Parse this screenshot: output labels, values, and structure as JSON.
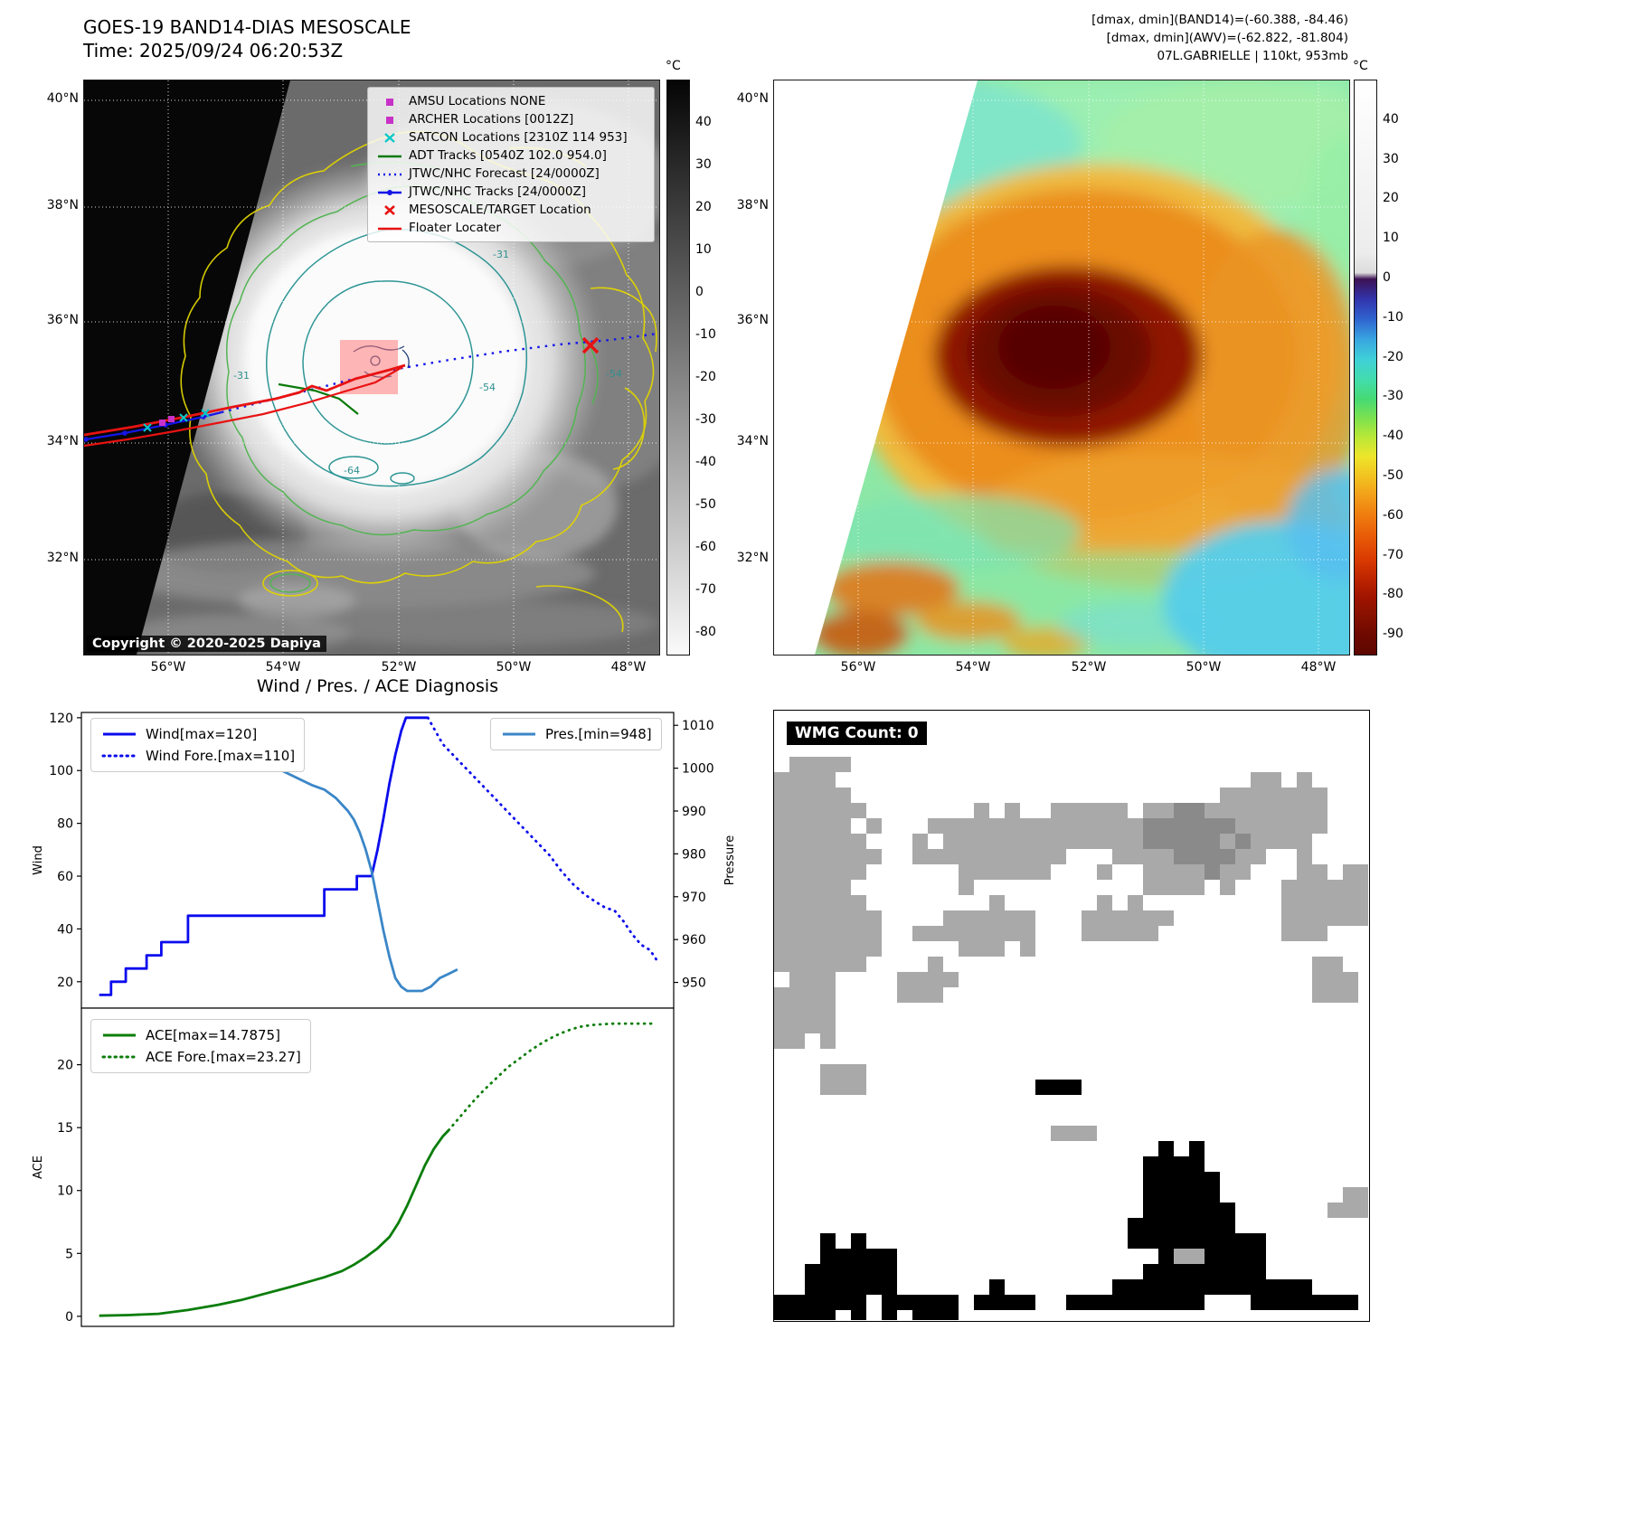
{
  "band14": {
    "title": "GOES-19 BAND14-DIAS MESOSCALE",
    "time": "Time: 2025/09/24 06:20:53Z",
    "copyright": "Copyright © 2020-2025 Dapiya",
    "lat_ticks": [
      "40°N",
      "38°N",
      "36°N",
      "34°N",
      "32°N"
    ],
    "lon_ticks": [
      "56°W",
      "54°W",
      "52°W",
      "50°W",
      "48°W"
    ],
    "contour_labels": [
      "-31",
      "-54",
      "-64",
      "-54",
      "-31"
    ],
    "colorbar": {
      "unit": "°C",
      "ticks": [
        40,
        30,
        20,
        10,
        0,
        -10,
        -20,
        -30,
        -40,
        -50,
        -60,
        -70,
        -80
      ]
    },
    "legend": [
      {
        "label": "AMSU Locations NONE",
        "marker": "square",
        "color": "#c832c8"
      },
      {
        "label": "ARCHER Locations [0012Z]",
        "marker": "square",
        "color": "#c832c8"
      },
      {
        "label": "SATCON Locations [2310Z 114 953]",
        "marker": "x",
        "color": "#00c8c8"
      },
      {
        "label": "ADT Tracks [0540Z 102.0 954.0]",
        "marker": "line",
        "color": "#0a7a0a"
      },
      {
        "label": "JTWC/NHC Forecast [24/0000Z]",
        "marker": "dotted-line",
        "color": "#1515e8"
      },
      {
        "label": "JTWC/NHC Tracks [24/0000Z]",
        "marker": "line-dot",
        "color": "#1515e8"
      },
      {
        "label": "MESOSCALE/TARGET Location",
        "marker": "x",
        "color": "#e81212"
      },
      {
        "label": "Floater Locater",
        "marker": "line",
        "color": "#e81212"
      }
    ]
  },
  "awv": {
    "header1": "[dmax, dmin](BAND14)=(-60.388, -84.46)",
    "header2": "[dmax, dmin](AWV)=(-62.822, -81.804)",
    "header3": "07L.GABRIELLE | 110kt, 953mb",
    "lat_ticks": [
      "40°N",
      "38°N",
      "36°N",
      "34°N",
      "32°N"
    ],
    "lon_ticks": [
      "56°W",
      "54°W",
      "52°W",
      "50°W",
      "48°W"
    ],
    "colorbar": {
      "unit": "°C",
      "ticks": [
        40,
        30,
        20,
        10,
        0,
        -10,
        -20,
        -30,
        -40,
        -50,
        -60,
        -70,
        -80,
        -90
      ]
    }
  },
  "diagnosis": {
    "title": "Wind / Pres. / ACE Diagnosis"
  },
  "wmg": {
    "label": "WMG Count: 0"
  },
  "chart_data": [
    {
      "type": "line",
      "title": "Wind / Pres. / ACE Diagnosis",
      "ylabel": "Wind",
      "y2label": "Pressure",
      "xlim": [
        0,
        100
      ],
      "ylim": [
        10,
        122
      ],
      "y2lim": [
        944,
        1013
      ],
      "yticks": [
        20,
        40,
        60,
        80,
        100,
        120
      ],
      "y2ticks": [
        950,
        960,
        970,
        980,
        990,
        1000,
        1010
      ],
      "grid": false,
      "legend_position": "upper left / upper right",
      "series": [
        {
          "name": "Wind[max=120]",
          "color": "#0b0bee",
          "style": "solid",
          "axis": "y",
          "x": [
            3,
            5,
            5,
            7.5,
            7.5,
            11,
            11,
            13.5,
            13.5,
            18,
            18,
            41,
            41,
            46.5,
            46.5,
            49,
            50,
            51,
            52,
            53,
            54,
            54.8,
            58.5
          ],
          "values": [
            15,
            15,
            20,
            20,
            25,
            25,
            30,
            30,
            35,
            35,
            45,
            45,
            55,
            55,
            60,
            60,
            70,
            82,
            95,
            106,
            115,
            120,
            120
          ]
        },
        {
          "name": "Wind Fore.[max=110]",
          "color": "#0b0bee",
          "style": "dotted",
          "axis": "y",
          "x": [
            58.5,
            61,
            64,
            67,
            70,
            73,
            76,
            79,
            81,
            83,
            85,
            87,
            88.5,
            90,
            91.5,
            93,
            94.5,
            96,
            97.5
          ],
          "values": [
            120,
            110,
            103,
            96,
            89,
            82,
            75,
            68,
            62,
            57,
            53,
            50,
            48,
            47,
            43,
            38,
            34,
            32,
            27
          ]
        },
        {
          "name": "Pres.[min=948]",
          "color": "#3a86c8",
          "style": "solid",
          "axis": "y2",
          "x": [
            3,
            8,
            13,
            18,
            22,
            26,
            30,
            33,
            36,
            39,
            41,
            43,
            45,
            46,
            47,
            48,
            49,
            50,
            51,
            52,
            53,
            54,
            55,
            56,
            57.5,
            59,
            60.5,
            62,
            63.5
          ],
          "values": [
            1005,
            1005,
            1005,
            1004,
            1004,
            1003,
            1001,
            1000,
            998,
            996,
            995,
            993,
            990,
            988,
            985,
            981,
            976,
            969,
            962,
            956,
            951,
            949,
            948,
            948,
            948,
            949,
            951,
            952,
            953
          ]
        }
      ]
    },
    {
      "type": "line",
      "ylabel": "ACE",
      "xlim": [
        0,
        100
      ],
      "ylim": [
        -0.8,
        24.5
      ],
      "yticks": [
        0,
        5,
        10,
        15,
        20
      ],
      "grid": false,
      "legend_position": "upper left",
      "series": [
        {
          "name": "ACE[max=14.7875]",
          "color": "#0a7d0a",
          "style": "solid",
          "axis": "y",
          "x": [
            3,
            8,
            13,
            18,
            23,
            27,
            31,
            35,
            38,
            41,
            44,
            46,
            48,
            50,
            52,
            53.5,
            55,
            56.5,
            58,
            59.5,
            61,
            62
          ],
          "values": [
            0.05,
            0.1,
            0.2,
            0.5,
            0.9,
            1.3,
            1.8,
            2.3,
            2.7,
            3.1,
            3.6,
            4.1,
            4.7,
            5.4,
            6.3,
            7.4,
            8.8,
            10.4,
            12,
            13.3,
            14.3,
            14.79
          ]
        },
        {
          "name": "ACE Fore.[max=23.27]",
          "color": "#0a7d0a",
          "style": "dotted",
          "axis": "y",
          "x": [
            62,
            64,
            66,
            68,
            70,
            72,
            74,
            76,
            78,
            80,
            82,
            84,
            86,
            88,
            90,
            92.5,
            95,
            97
          ],
          "values": [
            14.79,
            15.9,
            17,
            18,
            18.9,
            19.8,
            20.5,
            21.2,
            21.8,
            22.3,
            22.7,
            23,
            23.15,
            23.22,
            23.27,
            23.27,
            23.27,
            23.27
          ]
        }
      ]
    }
  ]
}
